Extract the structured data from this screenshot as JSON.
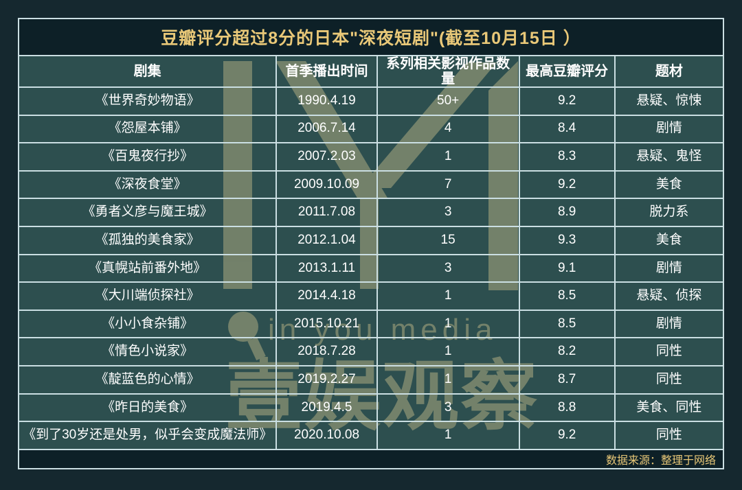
{
  "chart_data": {
    "type": "table",
    "title": "豆瓣评分超过8分的日本\"深夜短剧\"(截至10月15日 ）",
    "columns": [
      "剧集",
      "首季播出时间",
      "系列相关影视作品数量",
      "最高豆瓣评分",
      "题材"
    ],
    "rows": [
      [
        "《世界奇妙物语》",
        "1990.4.19",
        "50+",
        "9.2",
        "悬疑、惊悚"
      ],
      [
        "《怨屋本铺》",
        "2006.7.14",
        "4",
        "8.4",
        "剧情"
      ],
      [
        "《百鬼夜行抄》",
        "2007.2.03",
        "1",
        "8.3",
        "悬疑、鬼怪"
      ],
      [
        "《深夜食堂》",
        "2009.10.09",
        "7",
        "9.2",
        "美食"
      ],
      [
        "《勇者义彦与魔王城》",
        "2011.7.08",
        "3",
        "8.9",
        "脱力系"
      ],
      [
        "《孤独的美食家》",
        "2012.1.04",
        "15",
        "9.3",
        "美食"
      ],
      [
        "《真幌站前番外地》",
        "2013.1.11",
        "3",
        "9.1",
        "剧情"
      ],
      [
        "《大川端侦探社》",
        "2014.4.18",
        "1",
        "8.5",
        "悬疑、侦探"
      ],
      [
        "《小小食杂铺》",
        "2015.10.21",
        "1",
        "8.5",
        "剧情"
      ],
      [
        "《情色小说家》",
        "2018.7.28",
        "1",
        "8.2",
        "同性"
      ],
      [
        "《靛蓝色的心情》",
        "2019.2.27",
        "1",
        "8.7",
        "同性"
      ],
      [
        "《昨日的美食》",
        "2019.4.5",
        "3",
        "8.8",
        "美食、同性"
      ],
      [
        "《到了30岁还是处男，似乎会变成魔法师》",
        "2020.10.08",
        "1",
        "9.2",
        "同性"
      ]
    ],
    "source_note": "数据来源：整理于网络",
    "layout_hints": {
      "grid": "on",
      "header_position": "top",
      "title_position": "top-center",
      "source_position": "bottom-right"
    }
  },
  "watermark": {
    "logo": "in-you-media-m-monogram",
    "icon": "magnifier-icon",
    "text_en": "in you media",
    "text_cn": "壹娱观察"
  },
  "colors": {
    "page_background": "#15282F",
    "title_footer_background": "#0D2027",
    "cell_background": "#2D4F4F",
    "grid_line": "#CBDFE3",
    "accent_gold": "#E9C878",
    "cell_text": "#FFFFFF",
    "watermark": "#B3AF83"
  }
}
